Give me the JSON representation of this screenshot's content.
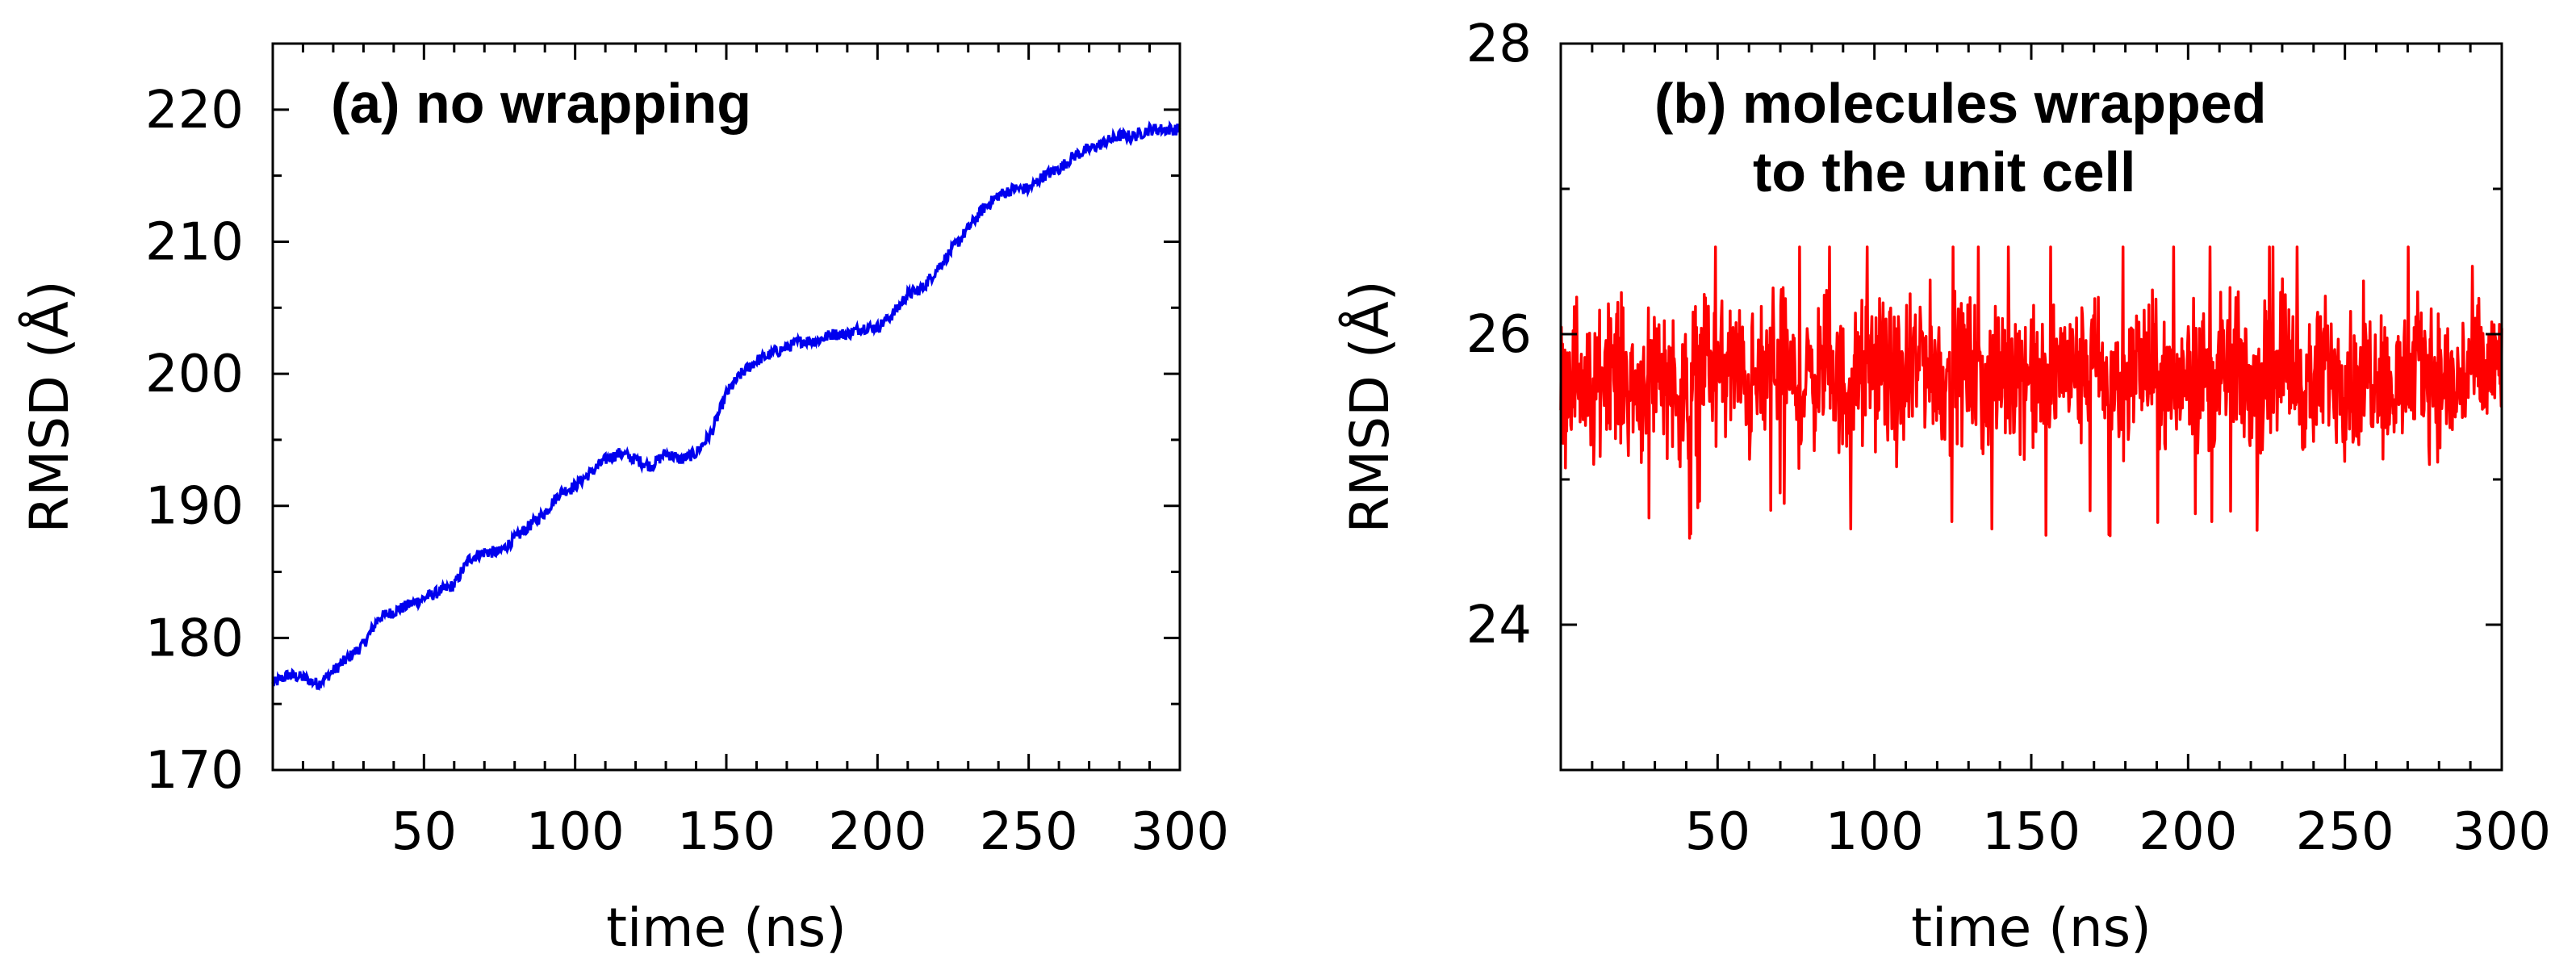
{
  "chart_data": [
    {
      "id": "a",
      "type": "line",
      "title": "(a) no wrapping",
      "title_lines": [
        "(a) no wrapping"
      ],
      "xlabel": "time (ns)",
      "ylabel": "RMSD (Å)",
      "xlim": [
        0,
        300
      ],
      "ylim": [
        170,
        225
      ],
      "xticks": [
        50,
        100,
        150,
        200,
        250,
        300
      ],
      "xticklabels": [
        "50",
        "100",
        "150",
        "200",
        "250",
        "300"
      ],
      "yticks": [
        170,
        180,
        190,
        200,
        210,
        220
      ],
      "yticklabels": [
        "170",
        "180",
        "190",
        "200",
        "210",
        "220"
      ],
      "series": [
        {
          "name": "no wrapping",
          "color": "#0000ee",
          "x": [
            0,
            5,
            10,
            15,
            20,
            25,
            30,
            35,
            40,
            45,
            50,
            55,
            60,
            65,
            70,
            75,
            80,
            85,
            90,
            95,
            100,
            105,
            110,
            115,
            120,
            125,
            130,
            135,
            140,
            145,
            150,
            155,
            160,
            165,
            170,
            175,
            180,
            185,
            190,
            195,
            200,
            205,
            210,
            215,
            220,
            225,
            230,
            235,
            240,
            245,
            250,
            255,
            260,
            265,
            270,
            275,
            280,
            285,
            290,
            295,
            300
          ],
          "values": [
            176.5,
            177.2,
            177.0,
            176.5,
            177.5,
            178.5,
            179.5,
            181.5,
            182.0,
            182.5,
            183.0,
            183.5,
            184.0,
            186.0,
            186.5,
            186.5,
            187.5,
            188.5,
            189.5,
            191.0,
            191.5,
            192.5,
            193.5,
            194.0,
            193.5,
            193.0,
            194.0,
            193.5,
            194.0,
            195.5,
            198.5,
            200.0,
            201.0,
            201.5,
            202.0,
            202.5,
            202.5,
            203.0,
            203.0,
            203.5,
            203.5,
            204.5,
            206.0,
            206.5,
            208.0,
            209.5,
            211.0,
            212.5,
            213.5,
            214.0,
            214.0,
            215.0,
            215.5,
            216.5,
            217.0,
            217.5,
            218.0,
            218.0,
            218.5,
            218.5,
            218.5
          ]
        }
      ]
    },
    {
      "id": "b",
      "type": "line",
      "title": "(b) molecules wrapped to the unit cell",
      "title_lines": [
        "(b) molecules wrapped",
        "to the unit cell"
      ],
      "xlabel": "time (ns)",
      "ylabel": "RMSD (Å)",
      "xlim": [
        0,
        300
      ],
      "ylim": [
        23,
        28
      ],
      "xticks": [
        50,
        100,
        150,
        200,
        250,
        300
      ],
      "xticklabels": [
        "50",
        "100",
        "150",
        "200",
        "250",
        "300"
      ],
      "yticks": [
        24,
        26,
        28
      ],
      "yticklabels": [
        "24",
        "26",
        "28"
      ],
      "series": [
        {
          "name": "molecules wrapped to the unit cell",
          "color": "#ff0000",
          "x": [
            0,
            5,
            10,
            15,
            20,
            25,
            30,
            35,
            40,
            45,
            50,
            55,
            60,
            65,
            70,
            75,
            80,
            85,
            90,
            95,
            100,
            105,
            110,
            115,
            120,
            125,
            130,
            135,
            140,
            145,
            150,
            155,
            160,
            165,
            170,
            175,
            180,
            185,
            190,
            195,
            200,
            205,
            210,
            215,
            220,
            225,
            230,
            235,
            240,
            245,
            250,
            255,
            260,
            265,
            270,
            275,
            280,
            285,
            290,
            295,
            300
          ],
          "values": [
            25.6,
            25.8,
            25.5,
            25.9,
            25.7,
            25.6,
            25.8,
            25.7,
            25.5,
            25.9,
            25.7,
            25.8,
            25.6,
            25.7,
            25.9,
            25.6,
            25.7,
            25.8,
            25.6,
            25.7,
            25.8,
            25.7,
            25.6,
            25.9,
            25.7,
            25.7,
            25.8,
            25.6,
            25.7,
            25.8,
            25.7,
            25.6,
            25.8,
            25.7,
            25.8,
            25.6,
            25.7,
            25.8,
            25.7,
            25.6,
            25.8,
            25.7,
            25.7,
            25.8,
            25.6,
            25.7,
            25.9,
            25.7,
            25.6,
            25.8,
            25.7,
            25.7,
            25.8,
            25.6,
            25.7,
            25.8,
            25.7,
            25.6,
            25.8,
            25.7,
            25.8
          ],
          "min": 24.4,
          "max": 26.6,
          "noise_amplitude": 0.45
        }
      ]
    }
  ]
}
